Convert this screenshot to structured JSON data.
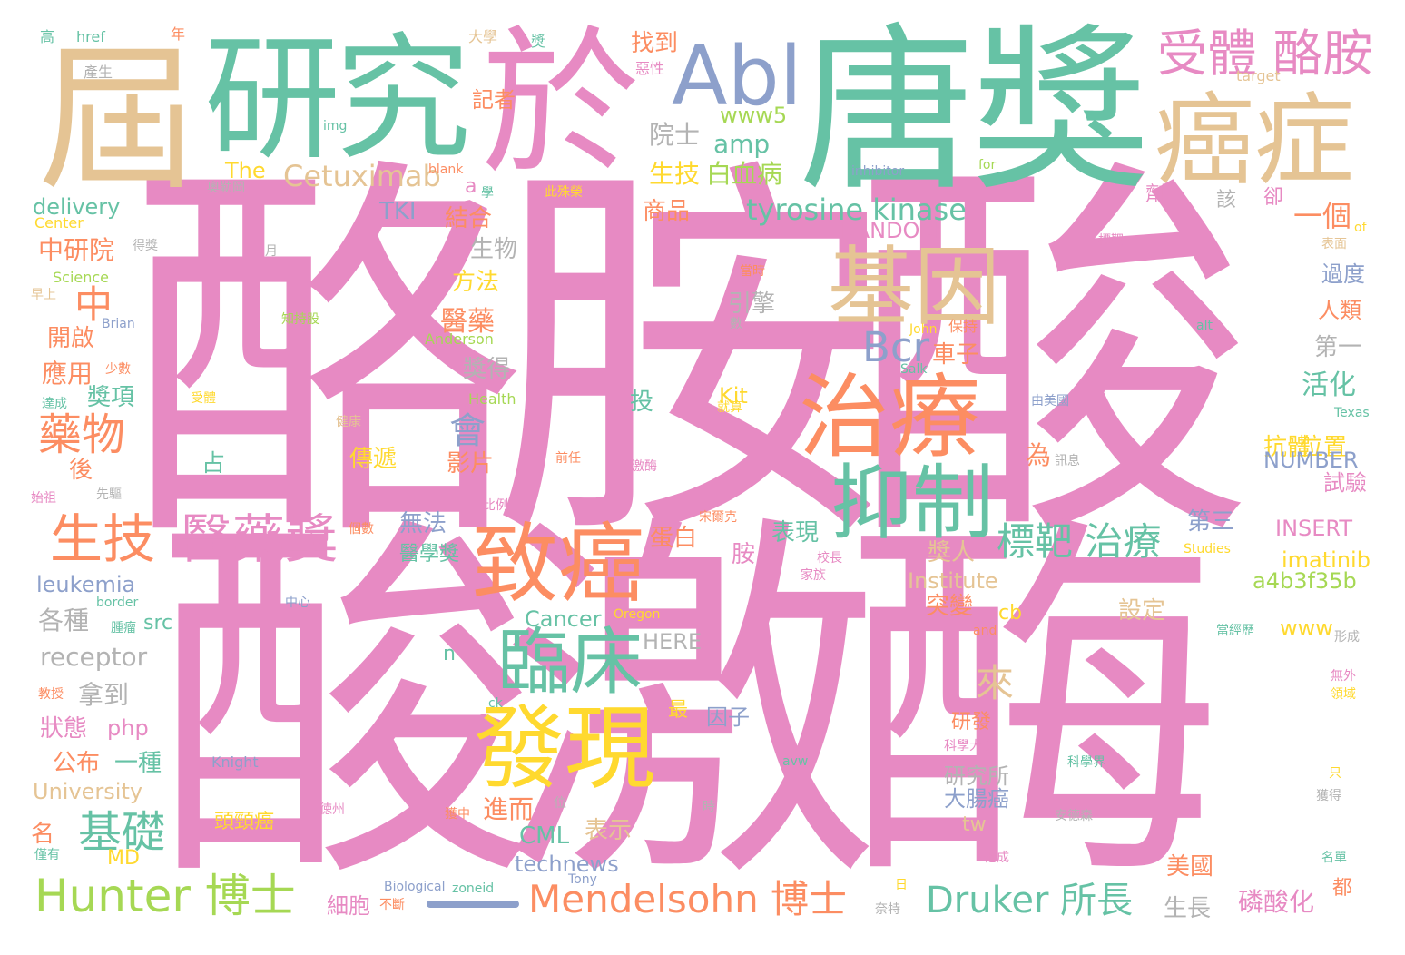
{
  "palette": {
    "pink": "#e78ac3",
    "green": "#66c2a5",
    "orange": "#fc8d62",
    "blue": "#8da0cb",
    "lime": "#a6d854",
    "yellow": "#ffd92f",
    "tan": "#e5c494",
    "gray": "#b3b3b3"
  },
  "words": [
    {
      "text": "酪胺酸",
      "color": "pink"
    },
    {
      "text": "酸激酶",
      "color": "pink"
    },
    {
      "text": "唐獎",
      "color": "green"
    },
    {
      "text": "於",
      "color": "pink"
    },
    {
      "text": "研究",
      "color": "green"
    },
    {
      "text": "屆",
      "color": "tan"
    },
    {
      "text": "癌症",
      "color": "tan"
    },
    {
      "text": "Abl",
      "color": "blue"
    },
    {
      "text": "受體 酪胺",
      "color": "pink"
    },
    {
      "text": "基因",
      "color": "tan"
    },
    {
      "text": "治療",
      "color": "orange"
    },
    {
      "text": "抑制",
      "color": "green"
    },
    {
      "text": "致癌",
      "color": "orange"
    },
    {
      "text": "臨床",
      "color": "green"
    },
    {
      "text": "發現",
      "color": "yellow"
    },
    {
      "text": "生技",
      "color": "orange"
    },
    {
      "text": "醫藥獎",
      "color": "pink"
    },
    {
      "text": "Hunter 博士",
      "color": "lime"
    },
    {
      "text": "Mendelsohn 博士",
      "color": "orange"
    },
    {
      "text": "Druker 所長",
      "color": "green"
    },
    {
      "text": "標靶 治療",
      "color": "green"
    },
    {
      "text": "tyrosine kinase",
      "color": "green"
    },
    {
      "text": "Cetuximab",
      "color": "tan"
    },
    {
      "text": "Bcr",
      "color": "blue"
    },
    {
      "text": "藥物",
      "color": "orange"
    },
    {
      "text": "基礎",
      "color": "green"
    },
    {
      "text": "中",
      "color": "orange"
    },
    {
      "text": "會",
      "color": "blue"
    },
    {
      "text": "來",
      "color": "tan"
    },
    {
      "text": "一個",
      "color": "orange"
    },
    {
      "text": "院士",
      "color": "gray"
    },
    {
      "text": "amp",
      "color": "green"
    },
    {
      "text": "www5",
      "color": "lime"
    },
    {
      "text": "生技",
      "color": "yellow"
    },
    {
      "text": "白血病",
      "color": "lime"
    },
    {
      "text": "商品",
      "color": "orange"
    },
    {
      "text": "結合",
      "color": "orange"
    },
    {
      "text": "生物",
      "color": "gray"
    },
    {
      "text": "方法",
      "color": "yellow"
    },
    {
      "text": "醫藥",
      "color": "orange"
    },
    {
      "text": "引擎",
      "color": "gray"
    },
    {
      "text": "找到",
      "color": "orange"
    },
    {
      "text": "記者",
      "color": "orange"
    },
    {
      "text": "RANDOM",
      "color": "pink"
    },
    {
      "text": "TKI",
      "color": "blue"
    },
    {
      "text": "中研院",
      "color": "orange"
    },
    {
      "text": "delivery",
      "color": "green"
    },
    {
      "text": "Center",
      "color": "yellow"
    },
    {
      "text": "Science",
      "color": "lime"
    },
    {
      "text": "The",
      "color": "yellow"
    },
    {
      "text": "開啟",
      "color": "orange"
    },
    {
      "text": "應用",
      "color": "orange"
    },
    {
      "text": "獎項",
      "color": "green"
    },
    {
      "text": "後",
      "color": "orange"
    },
    {
      "text": "占",
      "color": "green"
    },
    {
      "text": "獎得",
      "color": "gray"
    },
    {
      "text": "傳遞",
      "color": "yellow"
    },
    {
      "text": "影片",
      "color": "orange"
    },
    {
      "text": "為",
      "color": "orange"
    },
    {
      "text": "車子",
      "color": "orange"
    },
    {
      "text": "第一",
      "color": "gray"
    },
    {
      "text": "活化",
      "color": "green"
    },
    {
      "text": "抗體",
      "color": "yellow"
    },
    {
      "text": "位置",
      "color": "yellow"
    },
    {
      "text": "試驗",
      "color": "pink"
    },
    {
      "text": "NUMBER",
      "color": "blue"
    },
    {
      "text": "過度",
      "color": "blue"
    },
    {
      "text": "人類",
      "color": "orange"
    },
    {
      "text": "投",
      "color": "green"
    },
    {
      "text": "Kit",
      "color": "yellow"
    },
    {
      "text": "無法",
      "color": "blue"
    },
    {
      "text": "醫學獎",
      "color": "green"
    },
    {
      "text": "蛋白",
      "color": "orange"
    },
    {
      "text": "表現",
      "color": "green"
    },
    {
      "text": "胺",
      "color": "pink"
    },
    {
      "text": "第三",
      "color": "blue"
    },
    {
      "text": "INSERT",
      "color": "pink"
    },
    {
      "text": "imatinib",
      "color": "yellow"
    },
    {
      "text": "a4b3f35b",
      "color": "lime"
    },
    {
      "text": "Institute",
      "color": "tan"
    },
    {
      "text": "突變",
      "color": "orange"
    },
    {
      "text": "設定",
      "color": "tan"
    },
    {
      "text": "獎人",
      "color": "tan"
    },
    {
      "text": "www",
      "color": "yellow"
    },
    {
      "text": "cb",
      "color": "yellow"
    },
    {
      "text": "leukemia",
      "color": "blue"
    },
    {
      "text": "各種",
      "color": "gray"
    },
    {
      "text": "src",
      "color": "green"
    },
    {
      "text": "receptor",
      "color": "gray"
    },
    {
      "text": "Cancer",
      "color": "green"
    },
    {
      "text": "HERE",
      "color": "gray"
    },
    {
      "text": "n",
      "color": "green"
    },
    {
      "text": "拿到",
      "color": "gray"
    },
    {
      "text": "狀態",
      "color": "pink"
    },
    {
      "text": "php",
      "color": "pink"
    },
    {
      "text": "公布",
      "color": "orange"
    },
    {
      "text": "一種",
      "color": "green"
    },
    {
      "text": "University",
      "color": "tan"
    },
    {
      "text": "最",
      "color": "yellow"
    },
    {
      "text": "因子",
      "color": "blue"
    },
    {
      "text": "研發",
      "color": "orange"
    },
    {
      "text": "研究所",
      "color": "gray"
    },
    {
      "text": "大腸癌",
      "color": "blue"
    },
    {
      "text": "tw",
      "color": "tan"
    },
    {
      "text": "名",
      "color": "orange"
    },
    {
      "text": "進而",
      "color": "orange"
    },
    {
      "text": "CML",
      "color": "green"
    },
    {
      "text": "表示",
      "color": "tan"
    },
    {
      "text": "MD",
      "color": "yellow"
    },
    {
      "text": "technews",
      "color": "blue"
    },
    {
      "text": "美國",
      "color": "orange"
    },
    {
      "text": "磷酸化",
      "color": "pink"
    },
    {
      "text": "生長",
      "color": "gray"
    },
    {
      "text": "細胞",
      "color": "pink"
    },
    {
      "text": "頭頸癌",
      "color": "yellow"
    },
    {
      "text": "都",
      "color": "orange"
    },
    {
      "text": "卻",
      "color": "pink"
    },
    {
      "text": "劑",
      "color": "pink"
    },
    {
      "text": "該",
      "color": "gray"
    },
    {
      "text": "a",
      "color": "pink"
    },
    {
      "text": "高",
      "color": "green"
    },
    {
      "text": "href",
      "color": "green"
    },
    {
      "text": "年",
      "color": "orange"
    },
    {
      "text": "大學",
      "color": "tan"
    },
    {
      "text": "獎",
      "color": "green"
    },
    {
      "text": "惡性",
      "color": "pink"
    },
    {
      "text": "產生",
      "color": "gray"
    },
    {
      "text": "img",
      "color": "green"
    },
    {
      "text": "target",
      "color": "tan"
    },
    {
      "text": "inhibitor",
      "color": "blue"
    },
    {
      "text": "for",
      "color": "lime"
    },
    {
      "text": "blank",
      "color": "orange"
    },
    {
      "text": "學",
      "color": "green"
    },
    {
      "text": "奧勒岡",
      "color": "gray"
    },
    {
      "text": "此殊榮",
      "color": "yellow"
    },
    {
      "text": "得獎",
      "color": "gray"
    },
    {
      "text": "月",
      "color": "gray"
    },
    {
      "text": "早上",
      "color": "tan"
    },
    {
      "text": "知持股",
      "color": "lime"
    },
    {
      "text": "John",
      "color": "yellow"
    },
    {
      "text": "保持",
      "color": "orange"
    },
    {
      "text": "Anderson",
      "color": "lime"
    },
    {
      "text": "Brian",
      "color": "blue"
    },
    {
      "text": "數",
      "color": "gray"
    },
    {
      "text": "alt",
      "color": "green"
    },
    {
      "text": "標靶",
      "color": "pink"
    },
    {
      "text": "當時",
      "color": "orange"
    },
    {
      "text": "of",
      "color": "yellow"
    },
    {
      "text": "表面",
      "color": "tan"
    },
    {
      "text": "少數",
      "color": "orange"
    },
    {
      "text": "Salk",
      "color": "green"
    },
    {
      "text": "達成",
      "color": "green"
    },
    {
      "text": "受體",
      "color": "yellow"
    },
    {
      "text": "Health",
      "color": "lime"
    },
    {
      "text": "就算",
      "color": "yellow"
    },
    {
      "text": "由美國",
      "color": "blue"
    },
    {
      "text": "Texas",
      "color": "green"
    },
    {
      "text": "健康",
      "color": "tan"
    },
    {
      "text": "訊息",
      "color": "gray"
    },
    {
      "text": "前任",
      "color": "orange"
    },
    {
      "text": "激酶",
      "color": "pink"
    },
    {
      "text": "先驅",
      "color": "gray"
    },
    {
      "text": "始祖",
      "color": "pink"
    },
    {
      "text": "比例",
      "color": "pink"
    },
    {
      "text": "宋爾克",
      "color": "orange"
    },
    {
      "text": "個數",
      "color": "orange"
    },
    {
      "text": "校長",
      "color": "pink"
    },
    {
      "text": "家族",
      "color": "pink"
    },
    {
      "text": "Studies",
      "color": "yellow"
    },
    {
      "text": "border",
      "color": "green"
    },
    {
      "text": "中心",
      "color": "blue"
    },
    {
      "text": "腫瘤",
      "color": "green"
    },
    {
      "text": "Oregon",
      "color": "yellow"
    },
    {
      "text": "and",
      "color": "orange"
    },
    {
      "text": "當經歷",
      "color": "green"
    },
    {
      "text": "形成",
      "color": "gray"
    },
    {
      "text": "教授",
      "color": "orange"
    },
    {
      "text": "ck",
      "color": "green"
    },
    {
      "text": "無外",
      "color": "pink"
    },
    {
      "text": "領域",
      "color": "yellow"
    },
    {
      "text": "Knight",
      "color": "blue"
    },
    {
      "text": "avw",
      "color": "green"
    },
    {
      "text": "科學大學",
      "color": "pink"
    },
    {
      "text": "科學界",
      "color": "green"
    },
    {
      "text": "只",
      "color": "yellow"
    },
    {
      "text": "徳州",
      "color": "pink"
    },
    {
      "text": "位",
      "color": "gray"
    },
    {
      "text": "時",
      "color": "gray"
    },
    {
      "text": "獲中",
      "color": "orange"
    },
    {
      "text": "安德森",
      "color": "gray"
    },
    {
      "text": "獲得",
      "color": "gray"
    },
    {
      "text": "僅有",
      "color": "green"
    },
    {
      "text": "他成",
      "color": "pink"
    },
    {
      "text": "名單",
      "color": "green"
    },
    {
      "text": "Biological",
      "color": "blue"
    },
    {
      "text": "zoneid",
      "color": "green"
    },
    {
      "text": "Tony",
      "color": "blue"
    },
    {
      "text": "日",
      "color": "yellow"
    },
    {
      "text": "不斷",
      "color": "orange"
    },
    {
      "text": "奈特",
      "color": "gray"
    }
  ]
}
